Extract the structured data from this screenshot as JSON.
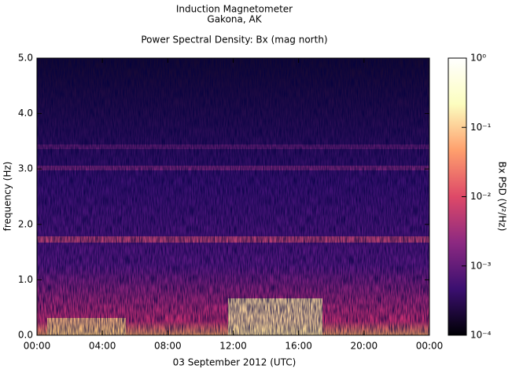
{
  "chart_data": {
    "type": "heatmap",
    "title": "Induction Magnetometer",
    "subtitle": "Gakona, AK",
    "plot_title": "Power Spectral Density: Bx (mag north)",
    "x_label": "03 September 2012 (UTC)",
    "y_label": "frequency (Hz)",
    "xlim": [
      0,
      24
    ],
    "xticks": [
      {
        "value": 0,
        "label": "00:00"
      },
      {
        "value": 4,
        "label": "04:00"
      },
      {
        "value": 8,
        "label": "08:00"
      },
      {
        "value": 12,
        "label": "12:00"
      },
      {
        "value": 16,
        "label": "16:00"
      },
      {
        "value": 20,
        "label": "20:00"
      },
      {
        "value": 24,
        "label": "00:00"
      }
    ],
    "ylim": [
      0,
      5
    ],
    "yticks": [
      {
        "value": 0,
        "label": "0.0"
      },
      {
        "value": 1,
        "label": "1.0"
      },
      {
        "value": 2,
        "label": "2.0"
      },
      {
        "value": 3,
        "label": "3.0"
      },
      {
        "value": 4,
        "label": "4.0"
      },
      {
        "value": 5,
        "label": "5.0"
      }
    ],
    "colorbar": {
      "label": "Bx PSD (V²/Hz)",
      "log_scale": true,
      "lim": [
        0.0001,
        1
      ],
      "ticks": [
        {
          "value": 0.0001,
          "label": "10⁻⁴"
        },
        {
          "value": 0.001,
          "label": "10⁻³"
        },
        {
          "value": 0.01,
          "label": "10⁻²"
        },
        {
          "value": 0.1,
          "label": "10⁻¹"
        },
        {
          "value": 1,
          "label": "10⁰"
        }
      ],
      "colormap": [
        "#000004",
        "#3b0f70",
        "#8c2981",
        "#de4968",
        "#fe9f6d",
        "#fcfdbf",
        "#ffffff"
      ]
    }
  }
}
